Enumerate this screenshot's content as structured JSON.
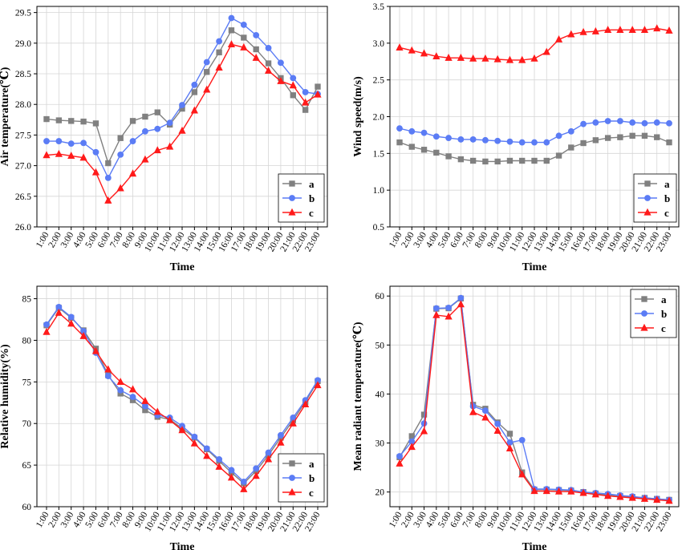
{
  "chart_data": [
    {
      "type": "line",
      "title": "",
      "xlabel": "Time",
      "ylabel": "Air temperature(℃)",
      "categories": [
        "1:00",
        "2:00",
        "3:00",
        "4:00",
        "5:00",
        "6:00",
        "7:00",
        "8:00",
        "9:00",
        "10:00",
        "11:00",
        "12:00",
        "13:00",
        "14:00",
        "15:00",
        "16:00",
        "17:00",
        "18:00",
        "19:00",
        "20:00",
        "21:00",
        "22:00",
        "23:00"
      ],
      "yticks": [
        "26.0",
        "26.5",
        "27.0",
        "27.5",
        "28.0",
        "28.5",
        "29.0",
        "29.5"
      ],
      "ylim": [
        26.0,
        29.6
      ],
      "legend_position": "bottom-right",
      "grid": true,
      "series": [
        {
          "name": "a",
          "color": "#808080",
          "marker": "square",
          "values": [
            27.76,
            27.74,
            27.73,
            27.72,
            27.69,
            27.04,
            27.45,
            27.73,
            27.8,
            27.87,
            27.67,
            27.93,
            28.2,
            28.53,
            28.85,
            29.21,
            29.09,
            28.9,
            28.67,
            28.43,
            28.15,
            27.91,
            28.29
          ]
        },
        {
          "name": "b",
          "color": "#5b7cf5",
          "marker": "circle",
          "values": [
            27.4,
            27.4,
            27.36,
            27.37,
            27.22,
            26.8,
            27.18,
            27.4,
            27.56,
            27.6,
            27.7,
            27.99,
            28.32,
            28.69,
            29.03,
            29.41,
            29.3,
            29.13,
            28.92,
            28.68,
            28.43,
            28.2,
            28.17
          ]
        },
        {
          "name": "c",
          "color": "#ff1a1a",
          "marker": "triangle",
          "values": [
            27.17,
            27.19,
            27.16,
            27.13,
            26.89,
            26.43,
            26.63,
            26.87,
            27.1,
            27.25,
            27.31,
            27.57,
            27.9,
            28.24,
            28.6,
            28.98,
            28.93,
            28.76,
            28.55,
            28.38,
            28.31,
            28.03,
            28.16
          ]
        }
      ]
    },
    {
      "type": "line",
      "title": "",
      "xlabel": "Time",
      "ylabel": "Wind speed(m/s)",
      "categories": [
        "1:00",
        "2:00",
        "3:00",
        "4:00",
        "5:00",
        "6:00",
        "7:00",
        "8:00",
        "9:00",
        "10:00",
        "11:00",
        "12:00",
        "13:00",
        "14:00",
        "15:00",
        "16:00",
        "17:00",
        "18:00",
        "19:00",
        "20:00",
        "21:00",
        "22:00",
        "23:00"
      ],
      "yticks": [
        "0.5",
        "1.0",
        "1.5",
        "2.0",
        "2.5",
        "3.0",
        "3.5"
      ],
      "ylim": [
        0.5,
        3.5
      ],
      "legend_position": "bottom-right",
      "grid": true,
      "series": [
        {
          "name": "a",
          "color": "#808080",
          "marker": "square",
          "values": [
            1.65,
            1.59,
            1.55,
            1.51,
            1.46,
            1.42,
            1.4,
            1.39,
            1.39,
            1.4,
            1.4,
            1.4,
            1.4,
            1.47,
            1.58,
            1.64,
            1.68,
            1.71,
            1.72,
            1.74,
            1.74,
            1.72,
            1.65
          ]
        },
        {
          "name": "b",
          "color": "#5b7cf5",
          "marker": "circle",
          "values": [
            1.84,
            1.8,
            1.78,
            1.73,
            1.71,
            1.69,
            1.69,
            1.68,
            1.67,
            1.66,
            1.65,
            1.65,
            1.65,
            1.74,
            1.8,
            1.9,
            1.92,
            1.94,
            1.94,
            1.92,
            1.91,
            1.92,
            1.91
          ]
        },
        {
          "name": "c",
          "color": "#ff1a1a",
          "marker": "triangle",
          "values": [
            2.94,
            2.9,
            2.86,
            2.82,
            2.8,
            2.8,
            2.79,
            2.79,
            2.78,
            2.77,
            2.77,
            2.79,
            2.88,
            3.05,
            3.12,
            3.15,
            3.16,
            3.18,
            3.18,
            3.18,
            3.18,
            3.2,
            3.17
          ]
        }
      ]
    },
    {
      "type": "line",
      "title": "",
      "xlabel": "Time",
      "ylabel": "Relative humidity(%)",
      "categories": [
        "1:00",
        "2:00",
        "3:00",
        "4:00",
        "5:00",
        "6:00",
        "7:00",
        "8:00",
        "9:00",
        "10:00",
        "11:00",
        "12:00",
        "13:00",
        "14:00",
        "15:00",
        "16:00",
        "17:00",
        "18:00",
        "19:00",
        "20:00",
        "21:00",
        "22:00",
        "23:00"
      ],
      "yticks": [
        "60",
        "65",
        "70",
        "75",
        "80",
        "85"
      ],
      "ylim": [
        60,
        86.5
      ],
      "legend_position": "bottom-right",
      "grid": true,
      "series": [
        {
          "name": "a",
          "color": "#808080",
          "marker": "square",
          "values": [
            81.8,
            83.9,
            82.7,
            81.2,
            79.0,
            75.8,
            73.6,
            72.8,
            71.6,
            70.8,
            70.5,
            69.4,
            68.3,
            66.9,
            65.5,
            64.1,
            62.8,
            64.3,
            66.2,
            68.3,
            70.4,
            72.6,
            75.1
          ]
        },
        {
          "name": "b",
          "color": "#5b7cf5",
          "marker": "circle",
          "values": [
            81.9,
            84.0,
            82.8,
            81.1,
            78.5,
            75.7,
            74.0,
            73.2,
            72.1,
            71.0,
            70.7,
            69.7,
            68.4,
            67.0,
            65.7,
            64.4,
            63.0,
            64.6,
            66.5,
            68.6,
            70.7,
            72.8,
            75.2
          ]
        },
        {
          "name": "c",
          "color": "#ff1a1a",
          "marker": "triangle",
          "values": [
            81.0,
            83.3,
            82.0,
            80.5,
            78.7,
            76.5,
            75.0,
            74.1,
            72.7,
            71.4,
            70.4,
            69.2,
            67.6,
            66.1,
            64.8,
            63.5,
            62.1,
            63.7,
            65.7,
            67.7,
            70.0,
            72.3,
            74.6
          ]
        }
      ]
    },
    {
      "type": "line",
      "title": "",
      "xlabel": "Time",
      "ylabel": "Mean radiant temperature(℃)",
      "categories": [
        "1:00",
        "2:00",
        "3:00",
        "4:00",
        "5:00",
        "6:00",
        "7:00",
        "8:00",
        "9:00",
        "10:00",
        "11:00",
        "12:00",
        "13:00",
        "14:00",
        "15:00",
        "16:00",
        "17:00",
        "18:00",
        "19:00",
        "20:00",
        "21:00",
        "22:00",
        "23:00"
      ],
      "yticks": [
        "20",
        "30",
        "40",
        "50",
        "60"
      ],
      "ylim": [
        17,
        62
      ],
      "legend_position": "top-right",
      "grid": true,
      "series": [
        {
          "name": "a",
          "color": "#808080",
          "marker": "square",
          "values": [
            27.1,
            31.4,
            35.8,
            57.4,
            57.5,
            59.5,
            37.8,
            37.0,
            34.2,
            31.9,
            24.0,
            20.5,
            20.5,
            20.4,
            20.3,
            20.0,
            19.7,
            19.4,
            19.2,
            19.0,
            18.8,
            18.6,
            18.4
          ]
        },
        {
          "name": "b",
          "color": "#5b7cf5",
          "marker": "circle",
          "values": [
            27.3,
            30.3,
            34.0,
            57.5,
            57.6,
            59.6,
            37.5,
            36.6,
            33.9,
            30.1,
            30.6,
            20.6,
            20.6,
            20.5,
            20.4,
            20.0,
            19.8,
            19.6,
            19.3,
            19.1,
            18.8,
            18.6,
            18.4
          ]
        },
        {
          "name": "c",
          "color": "#ff1a1a",
          "marker": "triangle",
          "values": [
            25.8,
            29.2,
            32.4,
            56.1,
            55.8,
            58.3,
            36.3,
            35.2,
            32.5,
            28.9,
            23.6,
            20.2,
            20.2,
            20.1,
            20.1,
            19.8,
            19.5,
            19.2,
            19.0,
            18.8,
            18.6,
            18.4,
            18.2
          ]
        }
      ]
    }
  ]
}
